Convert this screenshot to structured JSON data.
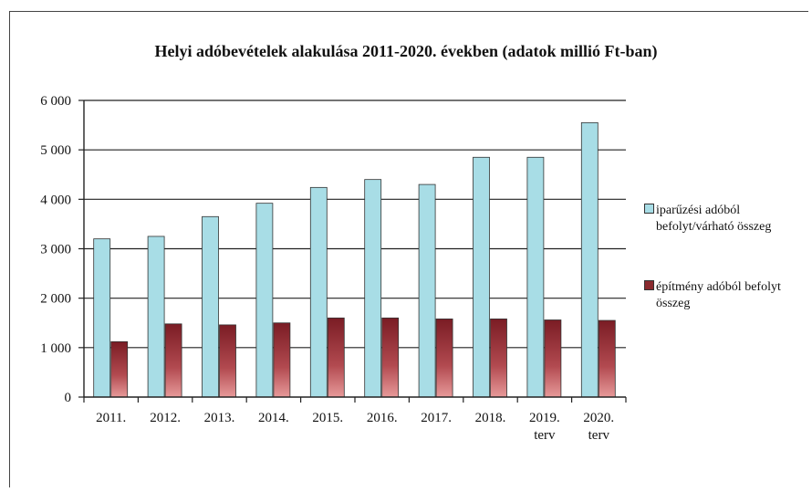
{
  "chart_data": {
    "type": "bar",
    "title": "Helyi adóbevételek alakulása 2011-2020. években (adatok millió Ft-ban)",
    "categories": [
      "2011.",
      "2012.",
      "2013.",
      "2014.",
      "2015.",
      "2016.",
      "2017.",
      "2018.",
      "2019. terv",
      "2020. terv"
    ],
    "series": [
      {
        "name": "iparűzési adóból befolyt/várható összeg",
        "color": "#a8dde6",
        "values": [
          3200,
          3250,
          3650,
          3920,
          4240,
          4400,
          4300,
          4850,
          4850,
          5550
        ]
      },
      {
        "name": "építmény adóból befolyt összeg",
        "color": "#8a2a2e",
        "values": [
          1120,
          1480,
          1460,
          1500,
          1600,
          1600,
          1580,
          1580,
          1560,
          1550
        ]
      }
    ],
    "ylim": [
      0,
      6000
    ],
    "yticks": [
      "0",
      "1 000",
      "2 000",
      "3 000",
      "4 000",
      "5 000",
      "6 000"
    ],
    "grid": true,
    "legend": "right"
  }
}
